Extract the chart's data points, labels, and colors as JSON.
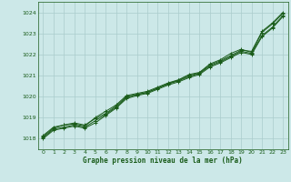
{
  "bg_color": "#cce8e8",
  "grid_color": "#aacccc",
  "line_color": "#1a5c1a",
  "xlabel": "Graphe pression niveau de la mer (hPa)",
  "xlabel_color": "#1a5c1a",
  "ylim": [
    1017.5,
    1024.5
  ],
  "xlim": [
    -0.5,
    23.5
  ],
  "yticks": [
    1018,
    1019,
    1020,
    1021,
    1022,
    1023,
    1024
  ],
  "xticks": [
    0,
    1,
    2,
    3,
    4,
    5,
    6,
    7,
    8,
    9,
    10,
    11,
    12,
    13,
    14,
    15,
    16,
    17,
    18,
    19,
    20,
    21,
    22,
    23
  ],
  "series": [
    [
      1018.05,
      1018.45,
      1018.55,
      1018.65,
      1018.55,
      1018.85,
      1019.15,
      1019.5,
      1019.95,
      1020.1,
      1020.2,
      1020.4,
      1020.6,
      1020.75,
      1020.95,
      1021.1,
      1021.45,
      1021.65,
      1021.9,
      1022.15,
      1022.05,
      1022.9,
      1023.3,
      1023.85
    ],
    [
      1018.1,
      1018.5,
      1018.65,
      1018.7,
      1018.6,
      1019.0,
      1019.3,
      1019.6,
      1020.05,
      1020.15,
      1020.25,
      1020.45,
      1020.65,
      1020.8,
      1021.05,
      1021.15,
      1021.55,
      1021.75,
      1022.05,
      1022.25,
      1022.1,
      1023.05,
      1023.45,
      1023.95
    ],
    [
      1018.15,
      1018.55,
      1018.65,
      1018.75,
      1018.65,
      1018.95,
      1019.2,
      1019.55,
      1020.0,
      1020.1,
      1020.2,
      1020.4,
      1020.62,
      1020.78,
      1021.0,
      1021.12,
      1021.5,
      1021.7,
      1021.95,
      1022.2,
      1022.15,
      1023.1,
      1023.5,
      1024.0
    ],
    [
      1018.0,
      1018.4,
      1018.5,
      1018.6,
      1018.5,
      1018.75,
      1019.1,
      1019.45,
      1019.9,
      1020.05,
      1020.15,
      1020.35,
      1020.55,
      1020.7,
      1020.9,
      1021.05,
      1021.4,
      1021.6,
      1021.85,
      1022.1,
      1022.0,
      1022.85,
      1023.25,
      1023.8
    ]
  ]
}
